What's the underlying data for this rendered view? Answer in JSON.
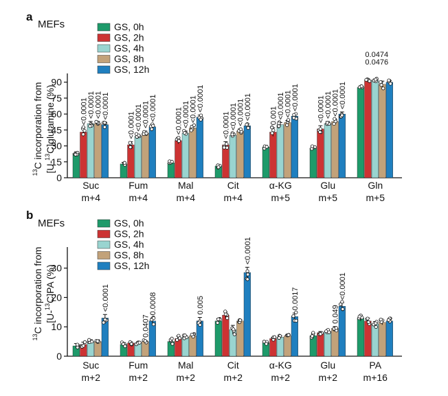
{
  "colors": {
    "GS, 0h": "#1e9a6a",
    "GS, 2h": "#cc3333",
    "GS, 4h": "#99d4d0",
    "GS, 8h": "#c2a27a",
    "GS, 12h": "#1f7fbf"
  },
  "chart_data": [
    {
      "type": "bar",
      "panel": "a",
      "title": "MEFs",
      "ylabel_line1": "13C incorporation from",
      "ylabel_line2": "[U-13C]glutamine (%)",
      "ylim": [
        0,
        95
      ],
      "yticks": [
        0,
        15,
        30,
        45,
        60,
        75,
        90
      ],
      "legend": [
        "GS, 0h",
        "GS, 2h",
        "GS, 4h",
        "GS, 8h",
        "GS, 12h"
      ],
      "categories": [
        {
          "name": "Suc",
          "iso": "m+4"
        },
        {
          "name": "Fum",
          "iso": "m+4"
        },
        {
          "name": "Mal",
          "iso": "m+4"
        },
        {
          "name": "Cit",
          "iso": "m+4"
        },
        {
          "name": "α-KG",
          "iso": "m+5"
        },
        {
          "name": "Glu",
          "iso": "m+5"
        },
        {
          "name": "Gln",
          "iso": "m+5"
        }
      ],
      "series": [
        {
          "name": "GS, 0h",
          "values": [
            23,
            13,
            14,
            11,
            29,
            28,
            85
          ]
        },
        {
          "name": "GS, 2h",
          "values": [
            43,
            31,
            35,
            31,
            43,
            46,
            92
          ]
        },
        {
          "name": "GS, 4h",
          "values": [
            51,
            39,
            42,
            40,
            50,
            51,
            92
          ]
        },
        {
          "name": "GS, 8h",
          "values": [
            51,
            42,
            47,
            44,
            52,
            53,
            88
          ]
        },
        {
          "name": "GS, 12h",
          "values": [
            50,
            48,
            57,
            49,
            58,
            60,
            90
          ]
        }
      ],
      "errors": [
        [
          1.5,
          1.5,
          1.2,
          1.2,
          1.5,
          1.5,
          1.0
        ],
        [
          4,
          3,
          3,
          3,
          4,
          3,
          1.2
        ],
        [
          2,
          2,
          2,
          2,
          2,
          2,
          1.0
        ],
        [
          2,
          2,
          2,
          2,
          2,
          2,
          3
        ],
        [
          2,
          2,
          2,
          2,
          2,
          2,
          1.5
        ]
      ],
      "pvalues": [
        [
          "",
          "",
          "",
          "",
          "",
          "",
          ""
        ],
        [
          "<0.0001",
          "<0.0001",
          "<0.0001",
          "<0.0001",
          "0.001",
          "<0.0001",
          "0.0474"
        ],
        [
          "<0.0001",
          "<0.0001",
          "<0.0001",
          "<0.0001",
          "<0.0001",
          "<0.0001",
          "0.0476"
        ],
        [
          "<0.0001",
          "<0.0001",
          "<0.0001",
          "<0.0001",
          "<0.0001",
          "<0.0001",
          ""
        ],
        [
          "<0.0001",
          "<0.0001",
          "<0.0001",
          "<0.0001",
          "<0.0001",
          "<0.0001",
          ""
        ]
      ],
      "pvalue_orientation": [
        "",
        "vertical",
        "vertical",
        "vertical",
        "vertical",
        "vertical",
        "horizontal"
      ]
    },
    {
      "type": "bar",
      "panel": "b",
      "title": "MEFs",
      "ylabel_line1": "13C incorporation from",
      "ylabel_line2": "[U-13C]PA (%)",
      "ylim": [
        0,
        36
      ],
      "yticks": [
        0,
        10,
        20,
        30
      ],
      "legend": [
        "GS, 0h",
        "GS, 2h",
        "GS, 4h",
        "GS, 8h",
        "GS, 12h"
      ],
      "categories": [
        {
          "name": "Suc",
          "iso": "m+2"
        },
        {
          "name": "Fum",
          "iso": "m+2"
        },
        {
          "name": "Mal",
          "iso": "m+2"
        },
        {
          "name": "Cit",
          "iso": "m+2"
        },
        {
          "name": "α-KG",
          "iso": "m+2"
        },
        {
          "name": "Glu",
          "iso": "m+2"
        },
        {
          "name": "PA",
          "iso": "m+16"
        }
      ],
      "series": [
        {
          "name": "GS, 0h",
          "values": [
            3.5,
            4.0,
            5.0,
            12.0,
            4.5,
            7.0,
            13.0
          ]
        },
        {
          "name": "GS, 2h",
          "values": [
            4.0,
            4.5,
            6.0,
            14.0,
            6.0,
            8.0,
            12.0
          ]
        },
        {
          "name": "GS, 4h",
          "values": [
            5.0,
            4.5,
            6.5,
            9.0,
            6.5,
            8.5,
            11.0
          ]
        },
        {
          "name": "GS, 8h",
          "values": [
            5.0,
            5.0,
            7.0,
            12.0,
            7.0,
            9.5,
            11.5
          ]
        },
        {
          "name": "GS, 12h",
          "values": [
            13.0,
            12.0,
            12.0,
            28.5,
            13.5,
            17.0,
            12.0
          ]
        }
      ],
      "errors": [
        [
          0.8,
          0.6,
          0.8,
          0.8,
          0.6,
          0.8,
          1.0
        ],
        [
          0.8,
          0.4,
          0.8,
          1.0,
          0.4,
          0.4,
          1.0
        ],
        [
          0.6,
          0.4,
          0.5,
          1.5,
          0.4,
          0.4,
          0.8
        ],
        [
          0.6,
          0.4,
          0.5,
          0.5,
          0.4,
          0.6,
          0.8
        ],
        [
          1.2,
          1.0,
          1.2,
          1.8,
          1.2,
          1.2,
          0.8
        ]
      ],
      "pvalues": [
        [
          "",
          "",
          "",
          "",
          "",
          "",
          ""
        ],
        [
          "",
          "",
          "",
          "",
          "",
          "",
          ""
        ],
        [
          "",
          "",
          "",
          "",
          "",
          "",
          ""
        ],
        [
          "",
          "0.0407",
          "",
          "",
          "",
          "0.049",
          ""
        ],
        [
          "<0.0001",
          "0.0008",
          "0.005",
          "<0.0001",
          "0.0017",
          "<0.0001",
          ""
        ]
      ],
      "pvalue_orientation": [
        "vertical",
        "vertical",
        "vertical",
        "vertical",
        "vertical",
        "vertical",
        ""
      ]
    }
  ]
}
